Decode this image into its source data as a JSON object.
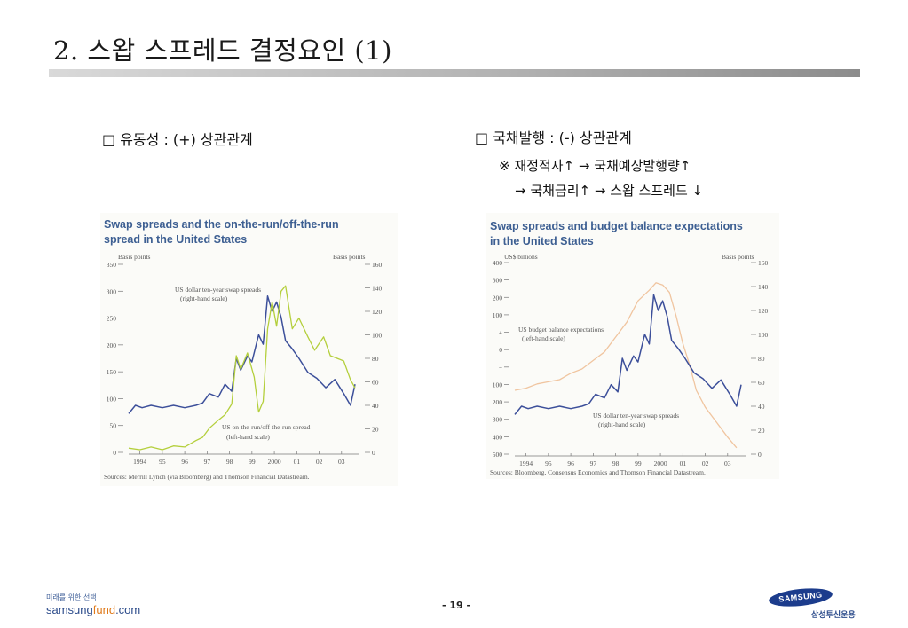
{
  "page": {
    "title": "2. 스왑 스프레드 결정요인 (1)",
    "page_number": "- 19 -"
  },
  "left": {
    "heading": "□ 유동성 : (+) 상관관계"
  },
  "right": {
    "heading": "□ 국채발행 : (-) 상관관계",
    "note1": "※ 재정적자↑ → 국채예상발행량↑",
    "note2": "→ 국채금리↑ → 스왑 스프레드 ↓"
  },
  "footer": {
    "slogan": "미래를 위한 선택",
    "site_a": "samsung",
    "site_b": "fund",
    "site_c": ".com",
    "logo_text": "SAMSUNG",
    "logo_sub": "삼성투신운용"
  },
  "colors": {
    "blue_series": "#3c4f9a",
    "green_series": "#b4cf3c",
    "orange_series": "#f0c5a0",
    "title_blue": "#3d5f92"
  },
  "chart_data": [
    {
      "type": "line",
      "title": "Swap spreads and the on-the-run/off-the-run spread in the United States",
      "title_line1": "Swap spreads and the on-the-run/off-the-run",
      "title_line2": "spread in the United States",
      "left_axis_label": "Basis points",
      "right_axis_label": "Basis points",
      "left_ticks": [
        "350",
        "300",
        "250",
        "200",
        "150",
        "100",
        "50",
        "0"
      ],
      "left_ylim": [
        0,
        350
      ],
      "right_ticks": [
        "160",
        "140",
        "120",
        "100",
        "80",
        "60",
        "40",
        "20",
        "0"
      ],
      "right_ylim": [
        0,
        160
      ],
      "x_ticks": [
        "1994",
        "95",
        "96",
        "97",
        "98",
        "99",
        "2000",
        "01",
        "02",
        "03"
      ],
      "xlim": [
        1994,
        2004.3
      ],
      "source": "Sources: Merrill Lynch (via Bloomberg) and Thomson Financial Datastream.",
      "series": [
        {
          "name": "US dollar ten-year swap spreads (right-hand scale)",
          "label_line1": "US dollar ten-year swap spreads",
          "label_line2": "(right-hand scale)",
          "axis": "right",
          "x": [
            1994.0,
            1994.3,
            1994.6,
            1995.0,
            1995.5,
            1996.0,
            1996.5,
            1997.0,
            1997.3,
            1997.6,
            1998.0,
            1998.3,
            1998.6,
            1998.8,
            1999.0,
            1999.3,
            1999.5,
            1999.8,
            2000.0,
            2000.2,
            2000.4,
            2000.6,
            2000.8,
            2001.0,
            2001.3,
            2001.6,
            2002.0,
            2002.4,
            2002.8,
            2003.2,
            2003.6,
            2003.9,
            2004.1
          ],
          "y": [
            33,
            40,
            38,
            40,
            38,
            40,
            38,
            40,
            42,
            50,
            47,
            58,
            52,
            80,
            70,
            82,
            77,
            100,
            92,
            133,
            120,
            128,
            115,
            95,
            88,
            80,
            68,
            63,
            55,
            62,
            50,
            40,
            58
          ]
        },
        {
          "name": "US on-the-run/off-the-run spread (left-hand scale)",
          "label_line1": "US on-the-run/off-the-run spread",
          "label_line2": "(left-hand scale)",
          "axis": "left",
          "x": [
            1994.0,
            1994.5,
            1995.0,
            1995.5,
            1996.0,
            1996.5,
            1997.0,
            1997.3,
            1997.6,
            1998.0,
            1998.3,
            1998.6,
            1998.8,
            1999.0,
            1999.3,
            1999.6,
            1999.8,
            2000.0,
            2000.2,
            2000.4,
            2000.6,
            2000.8,
            2001.0,
            2001.3,
            2001.6,
            2002.0,
            2002.3,
            2002.7,
            2003.0,
            2003.3,
            2003.6,
            2003.9,
            2004.1
          ],
          "y": [
            8,
            5,
            10,
            5,
            12,
            10,
            22,
            28,
            45,
            60,
            70,
            90,
            180,
            155,
            185,
            140,
            75,
            95,
            230,
            280,
            235,
            300,
            310,
            230,
            250,
            215,
            190,
            215,
            180,
            175,
            170,
            135,
            120
          ]
        }
      ]
    },
    {
      "type": "line",
      "title": "Swap spreads and budget balance expectations in the United States",
      "title_line1": "Swap spreads and budget balance expectations",
      "title_line2": "in the United States",
      "left_axis_label": "US$ billions",
      "right_axis_label": "Basis points",
      "left_ticks": [
        "400",
        "300",
        "200",
        "100",
        "+",
        "0",
        "−",
        "100",
        "200",
        "300",
        "400",
        "500"
      ],
      "right_ticks": [
        "160",
        "140",
        "120",
        "100",
        "80",
        "60",
        "40",
        "20",
        "0"
      ],
      "right_ylim": [
        0,
        160
      ],
      "left_ylim": [
        -500,
        400
      ],
      "x_ticks": [
        "1994",
        "95",
        "96",
        "97",
        "98",
        "99",
        "2000",
        "01",
        "02",
        "03"
      ],
      "xlim": [
        1994,
        2004.3
      ],
      "source": "Sources: Bloomberg, Consensus Economics and Thomson Financial Datastream.",
      "series": [
        {
          "name": "US budget balance expectations (left-hand scale)",
          "label_line1": "US budget balance expectations",
          "label_line2": "(left-hand scale)",
          "axis": "left",
          "x": [
            1994.0,
            1994.5,
            1995.0,
            1995.5,
            1996.0,
            1996.5,
            1997.0,
            1997.5,
            1998.0,
            1998.5,
            1999.0,
            1999.5,
            2000.0,
            2000.3,
            2000.6,
            2000.9,
            2001.2,
            2001.5,
            2001.8,
            2002.1,
            2002.5,
            2003.0,
            2003.5,
            2003.9
          ],
          "y": [
            -200,
            -190,
            -170,
            -160,
            -150,
            -120,
            -100,
            -60,
            -20,
            50,
            120,
            220,
            270,
            305,
            295,
            260,
            150,
            20,
            -80,
            -200,
            -280,
            -350,
            -420,
            -470
          ]
        },
        {
          "name": "US dollar ten-year swap spreads (right-hand scale)",
          "label_line1": "US dollar ten-year swap spreads",
          "label_line2": "(right-hand scale)",
          "axis": "right",
          "x": [
            1994.0,
            1994.3,
            1994.6,
            1995.0,
            1995.5,
            1996.0,
            1996.5,
            1997.0,
            1997.3,
            1997.6,
            1998.0,
            1998.3,
            1998.6,
            1998.8,
            1999.0,
            1999.3,
            1999.5,
            1999.8,
            2000.0,
            2000.2,
            2000.4,
            2000.6,
            2000.8,
            2001.0,
            2001.3,
            2001.6,
            2002.0,
            2002.4,
            2002.8,
            2003.2,
            2003.6,
            2003.9,
            2004.1
          ],
          "y": [
            33,
            40,
            38,
            40,
            38,
            40,
            38,
            40,
            42,
            50,
            47,
            58,
            52,
            80,
            70,
            82,
            77,
            100,
            92,
            133,
            120,
            128,
            115,
            95,
            88,
            80,
            68,
            63,
            55,
            62,
            50,
            40,
            58
          ]
        }
      ]
    }
  ]
}
